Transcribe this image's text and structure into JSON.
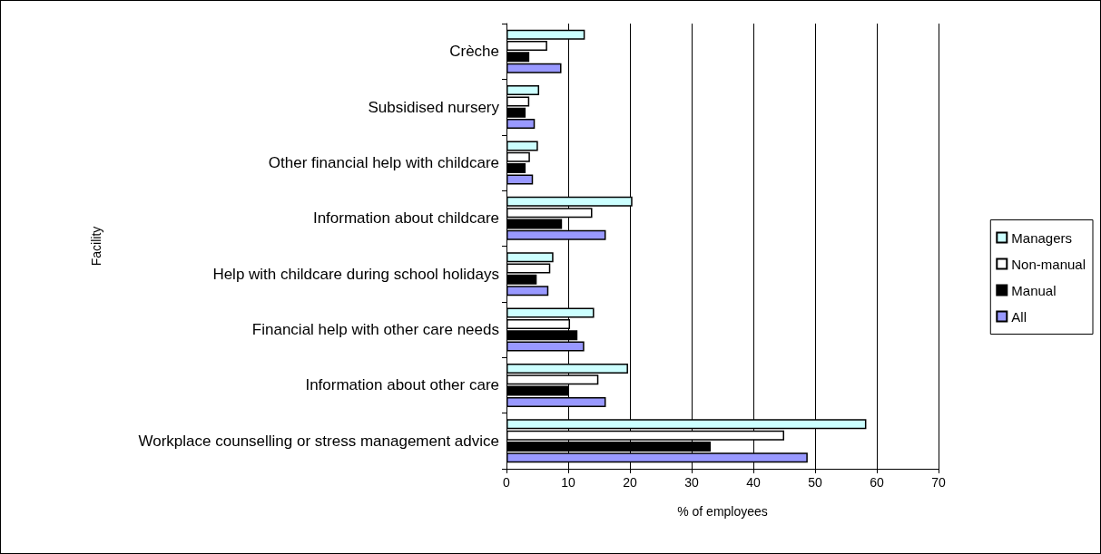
{
  "chart_data": {
    "type": "bar",
    "orientation": "horizontal",
    "xlabel": "% of employees",
    "ylabel": "Facility",
    "categories": [
      "Crèche",
      "Subsidised nursery",
      "Other financial help with childcare",
      "Information about childcare",
      "Help with childcare during school holidays",
      "Financial help with other care needs",
      "Information about other care",
      "Workplace counselling or stress management advice"
    ],
    "series": [
      {
        "name": "Managers",
        "color": "#ccffff",
        "values": [
          12.7,
          5.3,
          5.1,
          20.4,
          7.6,
          14.2,
          19.7,
          58.3
        ]
      },
      {
        "name": "Non-manual",
        "color": "#ffffff",
        "values": [
          6.6,
          3.7,
          3.8,
          13.9,
          7.1,
          10.3,
          14.9,
          45.0
        ]
      },
      {
        "name": "Manual",
        "color": "#000000",
        "values": [
          3.7,
          3.1,
          3.1,
          9.0,
          4.9,
          11.5,
          10.0,
          33.1
        ]
      },
      {
        "name": "All",
        "color": "#9999ff",
        "values": [
          8.9,
          4.6,
          4.3,
          16.1,
          6.8,
          12.6,
          16.1,
          48.8
        ]
      }
    ],
    "xlim": [
      0,
      70
    ],
    "xticks": [
      0,
      10,
      20,
      30,
      40,
      50,
      60,
      70
    ],
    "grid": "x",
    "legend": "right"
  }
}
